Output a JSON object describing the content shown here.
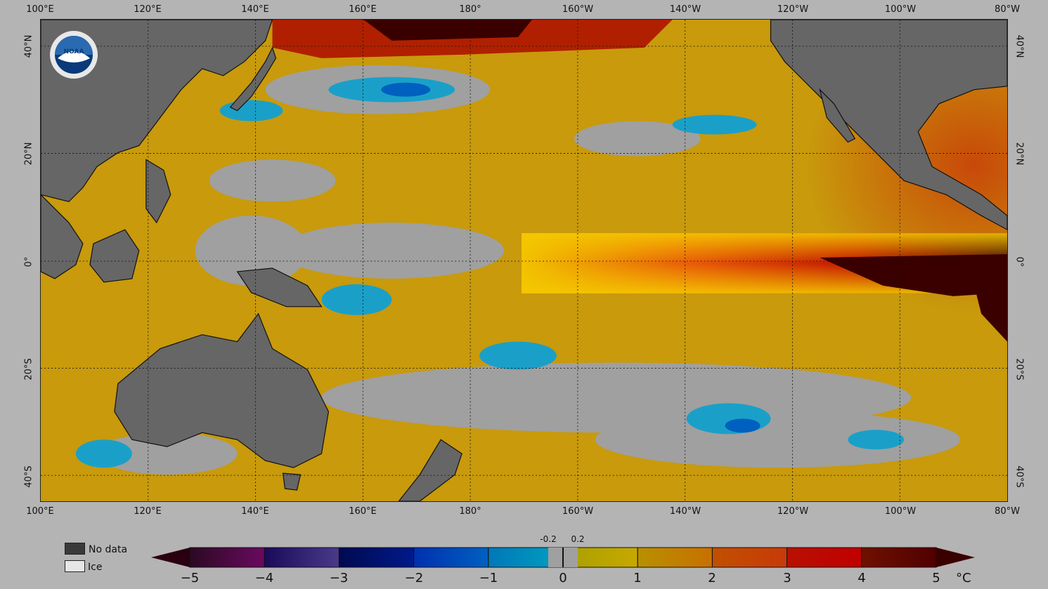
{
  "map": {
    "lon_labels_top": [
      "100°E",
      "120°E",
      "140°E",
      "160°E",
      "180°",
      "160°W",
      "140°W",
      "120°W",
      "100°W",
      "80°W"
    ],
    "lon_labels_bottom": [
      "100°E",
      "120°E",
      "140°E",
      "160°E",
      "180°",
      "160°W",
      "140°W",
      "120°W",
      "100°W",
      "80°W"
    ],
    "lat_labels_left": [
      "40°N",
      "20°N",
      "0°",
      "20°S",
      "40°S"
    ],
    "lat_labels_right": [
      "40°N",
      "20°N",
      "0°",
      "20°S",
      "40°S"
    ],
    "colors": {
      "background": "#b4b4b4",
      "ocean_base": "#c89a0c",
      "land": "#666666",
      "neutral": "#a0a0a0",
      "cool": "#1aa0c8",
      "deep_cool": "#0060c0",
      "warm": "#d04a08",
      "hot": "#b01000",
      "extreme": "#3a0000"
    },
    "logo_icon": "noaa-logo-icon"
  },
  "legend": {
    "no_data_label": "No data",
    "ice_label": "Ice",
    "no_data_color": "#3a3a3a",
    "ice_color": "#e6e6e6"
  },
  "colorbar": {
    "ticks": [
      "−5",
      "−4",
      "−3",
      "−2",
      "−1",
      "0",
      "1",
      "2",
      "3",
      "4",
      "5"
    ],
    "neutral_low_label": "-0.2",
    "neutral_high_label": "0.2",
    "unit": "°C",
    "segments": [
      {
        "from": "#2a0a22",
        "to": "#6a0a60"
      },
      {
        "from": "#1a0a5a",
        "to": "#4a3a8a"
      },
      {
        "from": "#000a50",
        "to": "#001a8a"
      },
      {
        "from": "#0030b0",
        "to": "#0060c0"
      },
      {
        "from": "#0078b8",
        "to": "#00a0c0"
      },
      {
        "from": "#a8a000",
        "to": "#c8a800"
      },
      {
        "from": "#b89000",
        "to": "#c87000"
      },
      {
        "from": "#c05000",
        "to": "#c83a08"
      },
      {
        "from": "#b81000",
        "to": "#c00000"
      },
      {
        "from": "#701000",
        "to": "#500000"
      }
    ]
  }
}
